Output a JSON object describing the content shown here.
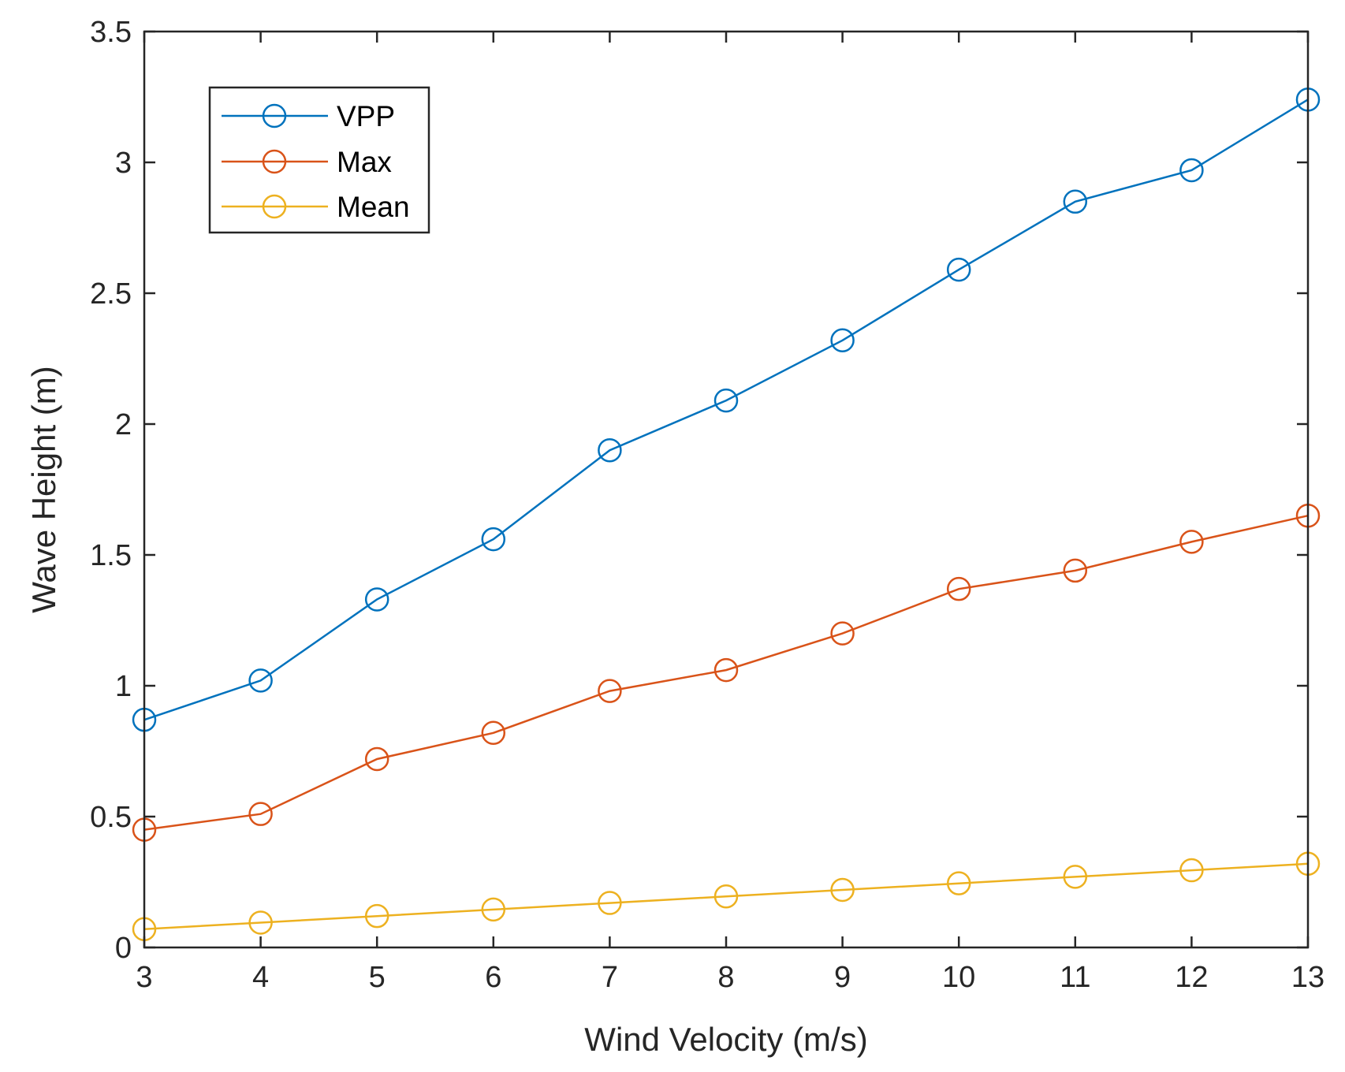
{
  "chart_data": {
    "type": "line",
    "title": "",
    "xlabel": "Wind Velocity (m/s)",
    "ylabel": "Wave Height (m)",
    "xlim": [
      3,
      13
    ],
    "ylim": [
      0,
      3.5
    ],
    "grid": false,
    "legend_position": "top-left",
    "x": [
      3,
      4,
      5,
      6,
      7,
      8,
      9,
      10,
      11,
      12,
      13
    ],
    "x_ticks": [
      3,
      4,
      5,
      6,
      7,
      8,
      9,
      10,
      11,
      12,
      13
    ],
    "x_tick_labels": [
      "3",
      "4",
      "5",
      "6",
      "7",
      "8",
      "9",
      "10",
      "11",
      "12",
      "13"
    ],
    "y_ticks": [
      0,
      0.5,
      1,
      1.5,
      2,
      2.5,
      3,
      3.5
    ],
    "y_tick_labels": [
      "0",
      "0.5",
      "1",
      "1.5",
      "2",
      "2.5",
      "3",
      "3.5"
    ],
    "series": [
      {
        "name": "VPP",
        "color": "#0072BD",
        "marker": "circle",
        "values": [
          0.87,
          1.02,
          1.33,
          1.56,
          1.9,
          2.09,
          2.32,
          2.59,
          2.85,
          2.97,
          3.24
        ]
      },
      {
        "name": "Max",
        "color": "#D95319",
        "marker": "circle",
        "values": [
          0.45,
          0.51,
          0.72,
          0.82,
          0.98,
          1.06,
          1.2,
          1.37,
          1.44,
          1.55,
          1.65
        ]
      },
      {
        "name": "Mean",
        "color": "#EDB120",
        "marker": "circle",
        "values": [
          0.07,
          0.095,
          0.12,
          0.145,
          0.17,
          0.195,
          0.22,
          0.245,
          0.27,
          0.295,
          0.32
        ]
      }
    ]
  }
}
